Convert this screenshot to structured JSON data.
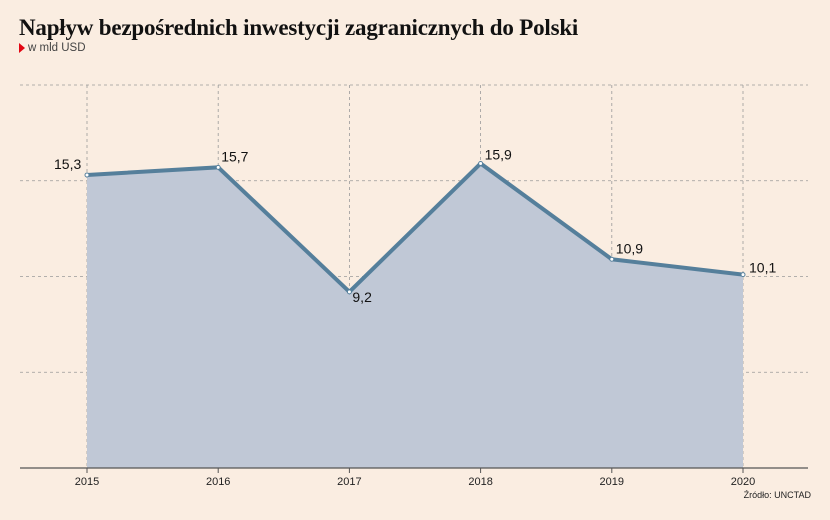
{
  "header": {
    "title": "Napływ bezpośrednich inwestycji zagranicznych do Polski",
    "subtitle": "w mld USD"
  },
  "footer": {
    "source": "Źródło: UNCTAD"
  },
  "colors": {
    "background": "#faede1",
    "line": "#557f9b",
    "area": "#c0c8d6",
    "grid": "#9a9a9a",
    "axis": "#555555",
    "accent_marker": "#e30613"
  },
  "chart_data": {
    "type": "area",
    "x": [
      "2015",
      "2016",
      "2017",
      "2018",
      "2019",
      "2020"
    ],
    "values": [
      15.3,
      15.7,
      9.2,
      15.9,
      10.9,
      10.1
    ],
    "labels": [
      "15,3",
      "15,7",
      "9,2",
      "15,9",
      "10,9",
      "10,1"
    ],
    "ylim": [
      0,
      20
    ],
    "y_gridlines": [
      5,
      10,
      15,
      20
    ],
    "grid": true,
    "legend": "none"
  }
}
